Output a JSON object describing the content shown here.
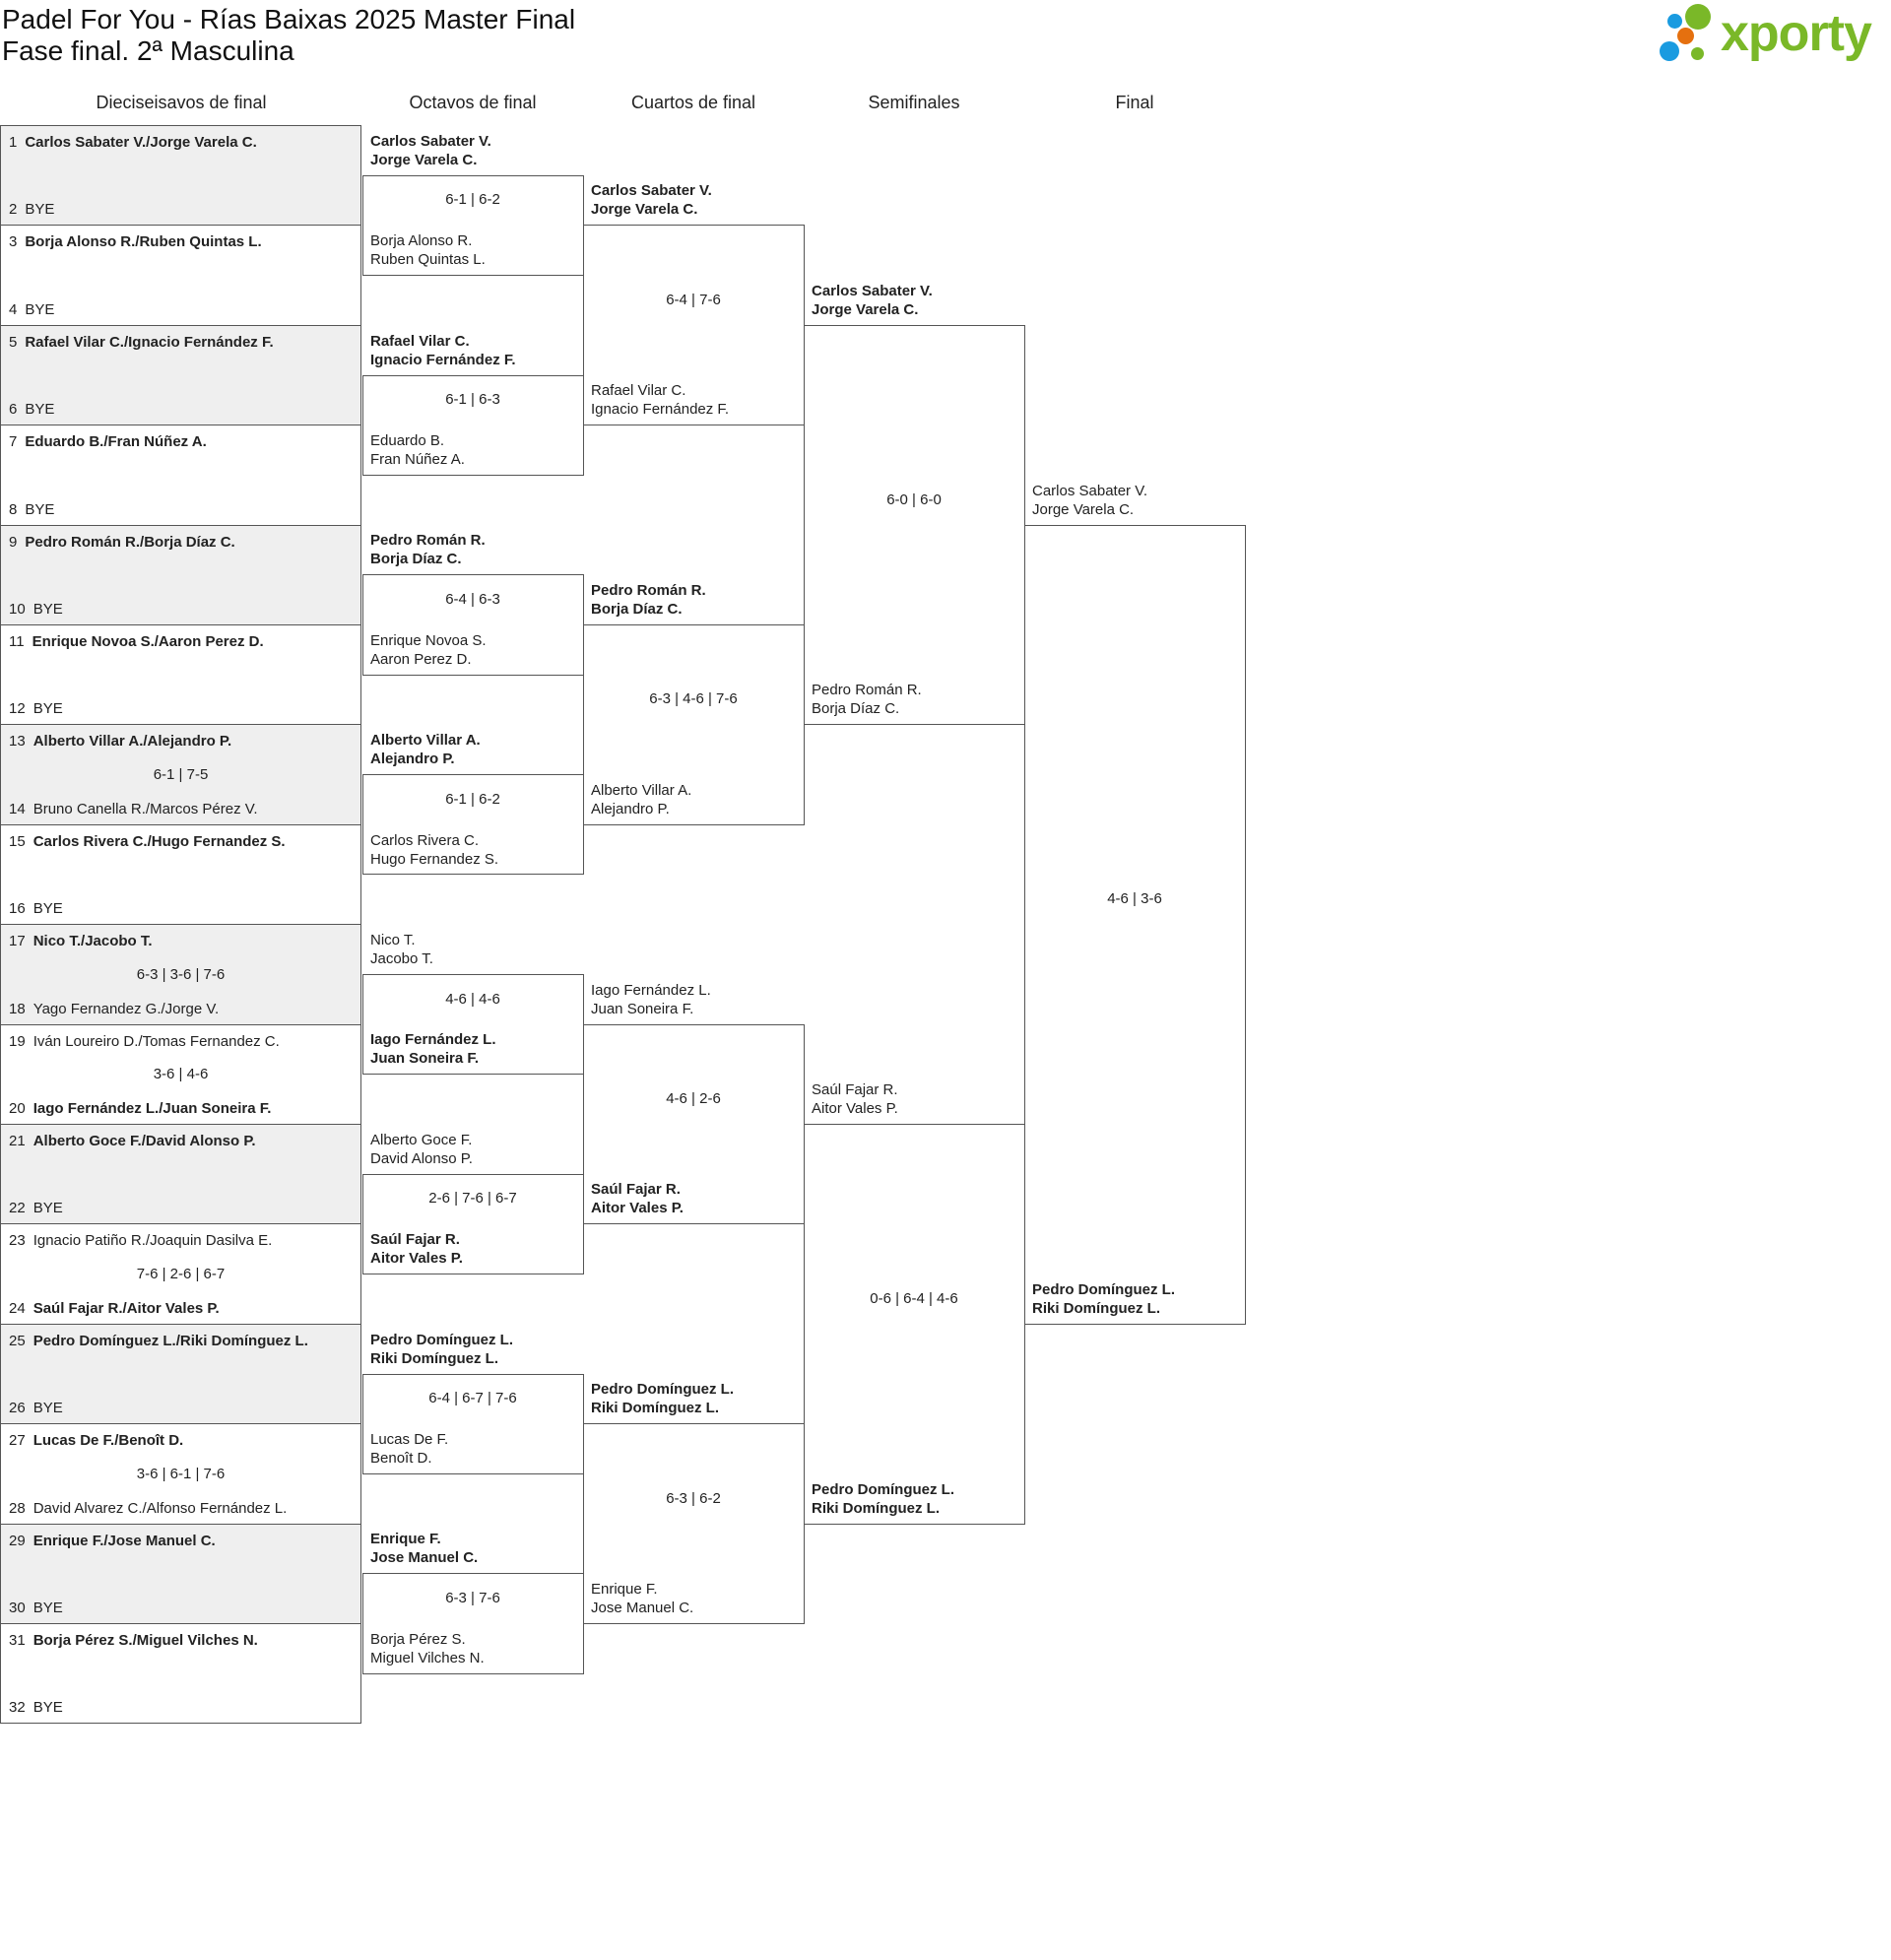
{
  "header": {
    "title": "Padel For You - Rías Baixas 2025 Master Final",
    "subtitle": "Fase final. 2ª Masculina",
    "logo_text": "xporty",
    "brand_colors": {
      "green": "#7ab828",
      "blue": "#1a9be0",
      "orange": "#e5700f"
    }
  },
  "rounds": [
    {
      "label": "Dieciseisavos de final"
    },
    {
      "label": "Octavos de final"
    },
    {
      "label": "Cuartos de final"
    },
    {
      "label": "Semifinales"
    },
    {
      "label": "Final"
    }
  ],
  "round1": [
    {
      "top": {
        "seed": "1",
        "name": "Carlos Sabater V./Jorge Varela C.",
        "winner": true
      },
      "bottom": {
        "seed": "2",
        "name": "BYE",
        "winner": false
      },
      "score": ""
    },
    {
      "top": {
        "seed": "3",
        "name": "Borja Alonso R./Ruben Quintas L.",
        "winner": true
      },
      "bottom": {
        "seed": "4",
        "name": "BYE",
        "winner": false
      },
      "score": ""
    },
    {
      "top": {
        "seed": "5",
        "name": "Rafael Vilar C./Ignacio Fernández F.",
        "winner": true
      },
      "bottom": {
        "seed": "6",
        "name": "BYE",
        "winner": false
      },
      "score": ""
    },
    {
      "top": {
        "seed": "7",
        "name": "Eduardo B./Fran Núñez A.",
        "winner": true
      },
      "bottom": {
        "seed": "8",
        "name": "BYE",
        "winner": false
      },
      "score": ""
    },
    {
      "top": {
        "seed": "9",
        "name": "Pedro Román R./Borja Díaz C.",
        "winner": true
      },
      "bottom": {
        "seed": "10",
        "name": "BYE",
        "winner": false
      },
      "score": ""
    },
    {
      "top": {
        "seed": "11",
        "name": "Enrique Novoa S./Aaron Perez D.",
        "winner": true
      },
      "bottom": {
        "seed": "12",
        "name": "BYE",
        "winner": false
      },
      "score": ""
    },
    {
      "top": {
        "seed": "13",
        "name": "Alberto Villar A./Alejandro P.",
        "winner": true
      },
      "bottom": {
        "seed": "14",
        "name": "Bruno Canella R./Marcos Pérez V.",
        "winner": false
      },
      "score": "6-1 | 7-5"
    },
    {
      "top": {
        "seed": "15",
        "name": "Carlos Rivera C./Hugo Fernandez S.",
        "winner": true
      },
      "bottom": {
        "seed": "16",
        "name": "BYE",
        "winner": false
      },
      "score": ""
    },
    {
      "top": {
        "seed": "17",
        "name": "Nico T./Jacobo T.",
        "winner": true
      },
      "bottom": {
        "seed": "18",
        "name": "Yago Fernandez G./Jorge V.",
        "winner": false
      },
      "score": "6-3 | 3-6 | 7-6"
    },
    {
      "top": {
        "seed": "19",
        "name": "Iván Loureiro D./Tomas Fernandez C.",
        "winner": false
      },
      "bottom": {
        "seed": "20",
        "name": "Iago Fernández L./Juan Soneira F.",
        "winner": true
      },
      "score": "3-6 | 4-6"
    },
    {
      "top": {
        "seed": "21",
        "name": "Alberto Goce F./David Alonso P.",
        "winner": true
      },
      "bottom": {
        "seed": "22",
        "name": "BYE",
        "winner": false
      },
      "score": ""
    },
    {
      "top": {
        "seed": "23",
        "name": "Ignacio Patiño R./Joaquin Dasilva E.",
        "winner": false
      },
      "bottom": {
        "seed": "24",
        "name": "Saúl Fajar R./Aitor Vales P.",
        "winner": true
      },
      "score": "7-6 | 2-6 | 6-7"
    },
    {
      "top": {
        "seed": "25",
        "name": "Pedro Domínguez L./Riki Domínguez L.",
        "winner": true
      },
      "bottom": {
        "seed": "26",
        "name": "BYE",
        "winner": false
      },
      "score": ""
    },
    {
      "top": {
        "seed": "27",
        "name": "Lucas De F./Benoît D.",
        "winner": true
      },
      "bottom": {
        "seed": "28",
        "name": "David Alvarez C./Alfonso Fernández L.",
        "winner": false
      },
      "score": "3-6 | 6-1 | 7-6"
    },
    {
      "top": {
        "seed": "29",
        "name": "Enrique F./Jose Manuel C.",
        "winner": true
      },
      "bottom": {
        "seed": "30",
        "name": "BYE",
        "winner": false
      },
      "score": ""
    },
    {
      "top": {
        "seed": "31",
        "name": "Borja Pérez S./Miguel Vilches N.",
        "winner": true
      },
      "bottom": {
        "seed": "32",
        "name": "BYE",
        "winner": false
      },
      "score": ""
    }
  ],
  "later_rounds": [
    [
      {
        "top": {
          "p1": "Carlos Sabater V.",
          "p2": "Jorge Varela C.",
          "winner": true
        },
        "bottom": {
          "p1": "Borja Alonso R.",
          "p2": "Ruben Quintas L.",
          "winner": false
        },
        "score": "6-1 | 6-2"
      },
      {
        "top": {
          "p1": "Rafael Vilar C.",
          "p2": "Ignacio Fernández F.",
          "winner": true
        },
        "bottom": {
          "p1": "Eduardo B.",
          "p2": "Fran Núñez A.",
          "winner": false
        },
        "score": "6-1 | 6-3"
      },
      {
        "top": {
          "p1": "Pedro Román R.",
          "p2": "Borja Díaz C.",
          "winner": true
        },
        "bottom": {
          "p1": "Enrique Novoa S.",
          "p2": "Aaron Perez D.",
          "winner": false
        },
        "score": "6-4 | 6-3"
      },
      {
        "top": {
          "p1": "Alberto Villar A.",
          "p2": "Alejandro P.",
          "winner": true
        },
        "bottom": {
          "p1": "Carlos Rivera C.",
          "p2": "Hugo Fernandez S.",
          "winner": false
        },
        "score": "6-1 | 6-2"
      },
      {
        "top": {
          "p1": "Nico T.",
          "p2": "Jacobo T.",
          "winner": false
        },
        "bottom": {
          "p1": "Iago Fernández L.",
          "p2": "Juan Soneira F.",
          "winner": true
        },
        "score": "4-6 | 4-6"
      },
      {
        "top": {
          "p1": "Alberto Goce F.",
          "p2": "David Alonso P.",
          "winner": false
        },
        "bottom": {
          "p1": "Saúl Fajar R.",
          "p2": "Aitor Vales P.",
          "winner": true
        },
        "score": "2-6 | 7-6 | 6-7"
      },
      {
        "top": {
          "p1": "Pedro Domínguez L.",
          "p2": "Riki Domínguez L.",
          "winner": true
        },
        "bottom": {
          "p1": "Lucas De F.",
          "p2": "Benoît D.",
          "winner": false
        },
        "score": "6-4 | 6-7 | 7-6"
      },
      {
        "top": {
          "p1": "Enrique F.",
          "p2": "Jose Manuel C.",
          "winner": true
        },
        "bottom": {
          "p1": "Borja Pérez S.",
          "p2": "Miguel Vilches N.",
          "winner": false
        },
        "score": "6-3 | 7-6"
      }
    ],
    [
      {
        "top": {
          "p1": "Carlos Sabater V.",
          "p2": "Jorge Varela C.",
          "winner": true
        },
        "bottom": {
          "p1": "Rafael Vilar C.",
          "p2": "Ignacio Fernández F.",
          "winner": false
        },
        "score": "6-4 | 7-6"
      },
      {
        "top": {
          "p1": "Pedro Román R.",
          "p2": "Borja Díaz C.",
          "winner": true
        },
        "bottom": {
          "p1": "Alberto Villar A.",
          "p2": "Alejandro P.",
          "winner": false
        },
        "score": "6-3 | 4-6 | 7-6"
      },
      {
        "top": {
          "p1": "Iago Fernández L.",
          "p2": "Juan Soneira F.",
          "winner": false
        },
        "bottom": {
          "p1": "Saúl Fajar R.",
          "p2": "Aitor Vales P.",
          "winner": true
        },
        "score": "4-6 | 2-6"
      },
      {
        "top": {
          "p1": "Pedro Domínguez L.",
          "p2": "Riki Domínguez L.",
          "winner": true
        },
        "bottom": {
          "p1": "Enrique F.",
          "p2": "Jose Manuel C.",
          "winner": false
        },
        "score": "6-3 | 6-2"
      }
    ],
    [
      {
        "top": {
          "p1": "Carlos Sabater V.",
          "p2": "Jorge Varela C.",
          "winner": true
        },
        "bottom": {
          "p1": "Pedro Román R.",
          "p2": "Borja Díaz C.",
          "winner": false
        },
        "score": "6-0 | 6-0"
      },
      {
        "top": {
          "p1": "Saúl Fajar R.",
          "p2": "Aitor Vales P.",
          "winner": false
        },
        "bottom": {
          "p1": "Pedro Domínguez L.",
          "p2": "Riki Domínguez L.",
          "winner": true
        },
        "score": "0-6 | 6-4 | 4-6"
      }
    ],
    [
      {
        "top": {
          "p1": "Carlos Sabater V.",
          "p2": "Jorge Varela C.",
          "winner": false
        },
        "bottom": {
          "p1": "Pedro Domínguez L.",
          "p2": "Riki Domínguez L.",
          "winner": true
        },
        "score": "4-6 | 3-6"
      }
    ]
  ]
}
